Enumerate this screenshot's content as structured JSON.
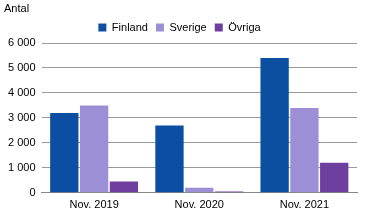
{
  "chart_data": {
    "type": "bar",
    "y_label": "Antal",
    "categories": [
      "Nov. 2019",
      "Nov. 2020",
      "Nov. 2021"
    ],
    "series": [
      {
        "name": "Finland",
        "color": "#0b4ea2",
        "values": [
          3200,
          2700,
          5400
        ]
      },
      {
        "name": "Sverige",
        "color": "#9d8fd6",
        "values": [
          3500,
          200,
          3400
        ]
      },
      {
        "name": "Övriga",
        "color": "#6f3fa0",
        "values": [
          450,
          50,
          1200
        ]
      }
    ],
    "ylim": [
      0,
      6000
    ],
    "yticks": [
      0,
      {
        "value": 1000,
        "label": "1 000"
      },
      {
        "value": 2000,
        "label": "2 000"
      },
      {
        "value": 3000,
        "label": "3 000"
      },
      {
        "value": 4000,
        "label": "4 000"
      },
      {
        "value": 5000,
        "label": "5 000"
      },
      {
        "value": 6000,
        "label": "6 000"
      }
    ],
    "grid": true,
    "legend": "top"
  }
}
